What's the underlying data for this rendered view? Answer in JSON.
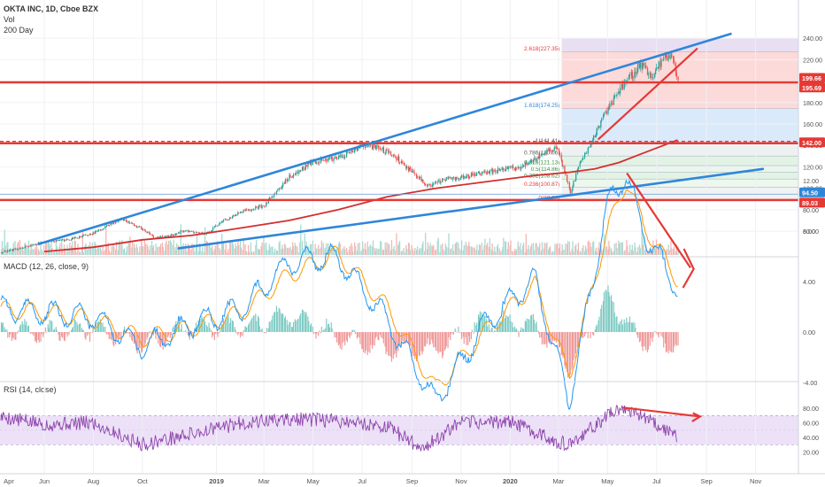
{
  "header": {
    "symbol": "OKTA INC, 1D, Cboe BZX",
    "vol": "Vol",
    "ma": "200 Day"
  },
  "macd_title": "MACD (12, 26, close, 9)",
  "rsi_title": "RSI (14, close)",
  "colors": {
    "up": "#26a69a",
    "down": "#ef5350",
    "ma": "#d32f2f",
    "trend": "#2f86d9",
    "level": "#e53935",
    "macd": "#2196f3",
    "signal": "#ff9800",
    "rsi": "#8e44ad",
    "rsi_band": "#ece1f7",
    "fib_top": "#e6dcf2",
    "fib_red": "#fbd4d4",
    "fib_blue": "#d6e8fb",
    "fib_green": "#dff2e3",
    "fib_gray": "#eceff1"
  },
  "chart_data": [
    {
      "type": "candlestick",
      "title": "OKTA INC, 1D, Cboe BZX",
      "x_ticks": [
        "Apr",
        "Jun",
        "Aug",
        "Oct",
        "2019",
        "Mar",
        "May",
        "Jul",
        "Sep",
        "Nov",
        "2020",
        "Mar",
        "May",
        "Jul",
        "Sep",
        "Nov"
      ],
      "y_ticks": [
        60,
        80,
        100,
        120,
        140,
        160,
        180,
        200,
        220,
        240
      ],
      "ylim": [
        45,
        241
      ],
      "price_series": {
        "dates": [
          "2018-04-07",
          "2018-05-01",
          "2018-06-01",
          "2018-07-01",
          "2018-08-01",
          "2018-09-04",
          "2018-10-01",
          "2018-10-15",
          "2018-11-01",
          "2018-11-20",
          "2018-12-20",
          "2019-01-10",
          "2019-02-01",
          "2019-03-01",
          "2019-04-01",
          "2019-05-01",
          "2019-06-01",
          "2019-07-01",
          "2019-07-20",
          "2019-08-10",
          "2019-09-01",
          "2019-09-20",
          "2019-10-10",
          "2019-11-01",
          "2019-12-01",
          "2020-01-15",
          "2020-02-15",
          "2020-02-28",
          "2020-03-16",
          "2020-03-25",
          "2020-04-15",
          "2020-05-01",
          "2020-05-20",
          "2020-06-10",
          "2020-06-25",
          "2020-07-10",
          "2020-07-20",
          "2020-07-27"
        ],
        "close": [
          40,
          44,
          50,
          52,
          58,
          72,
          62,
          54,
          55,
          60,
          58,
          70,
          78,
          84,
          110,
          125,
          128,
          140,
          138,
          130,
          115,
          102,
          108,
          110,
          115,
          120,
          135,
          138,
          96,
          118,
          150,
          175,
          195,
          215,
          205,
          222,
          225,
          197
        ]
      },
      "ma200": {
        "dates": [
          "2018-06-01",
          "2018-08-01",
          "2018-10-01",
          "2018-12-01",
          "2019-02-01",
          "2019-04-01",
          "2019-06-01",
          "2019-08-01",
          "2019-10-01",
          "2019-12-01",
          "2020-02-01",
          "2020-03-15",
          "2020-04-15",
          "2020-05-15",
          "2020-06-15",
          "2020-07-27"
        ],
        "values": [
          41,
          45,
          52,
          56,
          63,
          70,
          80,
          92,
          100,
          106,
          112,
          115,
          118,
          124,
          133,
          145
        ]
      },
      "levels": [
        {
          "value": 199.66,
          "label": "199.66"
        },
        {
          "value": 195.69,
          "label": "195.69"
        },
        {
          "value": 142.0,
          "label": "142.00"
        },
        {
          "value": 94.5,
          "label": "94.50"
        },
        {
          "value": 89.03,
          "label": "89.03"
        }
      ],
      "fib_labels": [
        {
          "text": "2.618(227.35)",
          "value": 227.35
        },
        {
          "text": "1.618(174.25)",
          "value": 174.25
        },
        {
          "text": "1(141.41)",
          "value": 141.41
        },
        {
          "text": "0.786(130.06)",
          "value": 130.06
        },
        {
          "text": "0.618(121.13)",
          "value": 121.13
        },
        {
          "text": "0.5(114.86)",
          "value": 114.86
        },
        {
          "text": "0.382(108.62)",
          "value": 108.62
        },
        {
          "text": "0.236(100.87)",
          "value": 100.87
        },
        {
          "text": "0(88.33)",
          "value": 88.33
        }
      ],
      "trendlines": {
        "upper_channel": [
          [
            "2018-05-25",
            48
          ],
          [
            "2020-10-01",
            244
          ]
        ],
        "lower_channel": [
          [
            "2018-11-15",
            44
          ],
          [
            "2020-11-10",
            118
          ]
        ],
        "recent_support": [
          [
            "2020-04-20",
            146
          ],
          [
            "2020-08-20",
            230
          ]
        ]
      }
    },
    {
      "type": "line",
      "title": "MACD (12, 26, close, 9)",
      "y_ticks": [
        -4.0,
        0.0,
        4.0,
        8.0,
        12.0
      ],
      "ylim": [
        -8,
        14.5
      ],
      "x": [
        "2018-04-01",
        "2018-06-01",
        "2018-08-01",
        "2018-10-01",
        "2018-12-01",
        "2019-02-01",
        "2019-04-01",
        "2019-06-01",
        "2019-08-01",
        "2019-10-01",
        "2019-12-01",
        "2020-02-01",
        "2020-03-15",
        "2020-05-01",
        "2020-05-25",
        "2020-06-15",
        "2020-07-27"
      ],
      "series": [
        {
          "name": "MACD",
          "values": [
            2.0,
            1.5,
            1.2,
            -1.2,
            0.6,
            1.8,
            5.5,
            6.0,
            1.0,
            -5.5,
            0.6,
            4.2,
            -5.5,
            10.0,
            12.5,
            8.0,
            3.5
          ]
        },
        {
          "name": "Signal",
          "values": [
            1.8,
            1.6,
            1.0,
            -0.5,
            0.3,
            1.5,
            4.5,
            6.2,
            2.0,
            -4.5,
            0.0,
            3.8,
            -3.5,
            8.0,
            12.0,
            8.5,
            4.2
          ]
        }
      ]
    },
    {
      "type": "line",
      "title": "RSI (14, close)",
      "y_ticks": [
        20.0,
        40.0,
        60.0,
        80.0
      ],
      "ylim": [
        17,
        87
      ],
      "band": [
        30,
        70
      ],
      "x": [
        "2018-04-01",
        "2018-06-01",
        "2018-08-01",
        "2018-10-01",
        "2018-12-01",
        "2019-02-01",
        "2019-04-01",
        "2019-06-01",
        "2019-08-01",
        "2019-09-15",
        "2019-11-01",
        "2020-01-01",
        "2020-03-15",
        "2020-05-01",
        "2020-05-20",
        "2020-06-15",
        "2020-07-27"
      ],
      "series": [
        {
          "name": "RSI",
          "values": [
            70,
            58,
            60,
            30,
            45,
            60,
            65,
            63,
            55,
            25,
            60,
            62,
            28,
            70,
            82,
            70,
            42
          ]
        }
      ]
    }
  ]
}
